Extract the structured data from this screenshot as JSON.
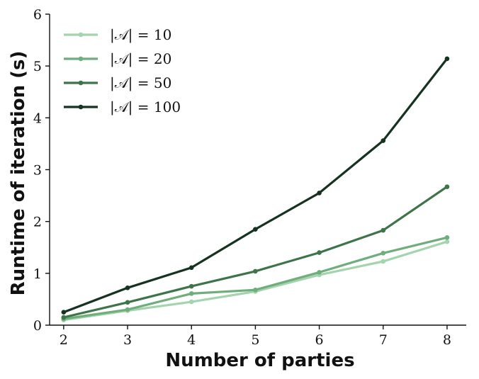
{
  "chart_data": {
    "type": "line",
    "title": "",
    "xlabel": "Number of parties",
    "ylabel": "Runtime of iteration (s)",
    "x": [
      2,
      3,
      4,
      5,
      6,
      7,
      8
    ],
    "xlim": [
      1.78,
      8.3
    ],
    "ylim": [
      0,
      6
    ],
    "xticks": [
      2,
      3,
      4,
      5,
      6,
      7,
      8
    ],
    "yticks": [
      0,
      1,
      2,
      3,
      4,
      5,
      6
    ],
    "grid": false,
    "legend_position": "top-left",
    "series": [
      {
        "name": "|𝒜| = 10",
        "color": "#a3d4ad",
        "values": [
          0.1,
          0.28,
          0.45,
          0.65,
          0.97,
          1.23,
          1.61
        ]
      },
      {
        "name": "|𝒜| = 20",
        "color": "#6fae7c",
        "values": [
          0.12,
          0.3,
          0.61,
          0.68,
          1.02,
          1.39,
          1.69
        ]
      },
      {
        "name": "|𝒜| = 50",
        "color": "#3e7449",
        "values": [
          0.15,
          0.44,
          0.75,
          1.04,
          1.4,
          1.83,
          2.67
        ]
      },
      {
        "name": "|𝒜| = 100",
        "color": "#163220",
        "values": [
          0.25,
          0.72,
          1.11,
          1.85,
          2.55,
          3.56,
          5.14
        ]
      }
    ]
  }
}
